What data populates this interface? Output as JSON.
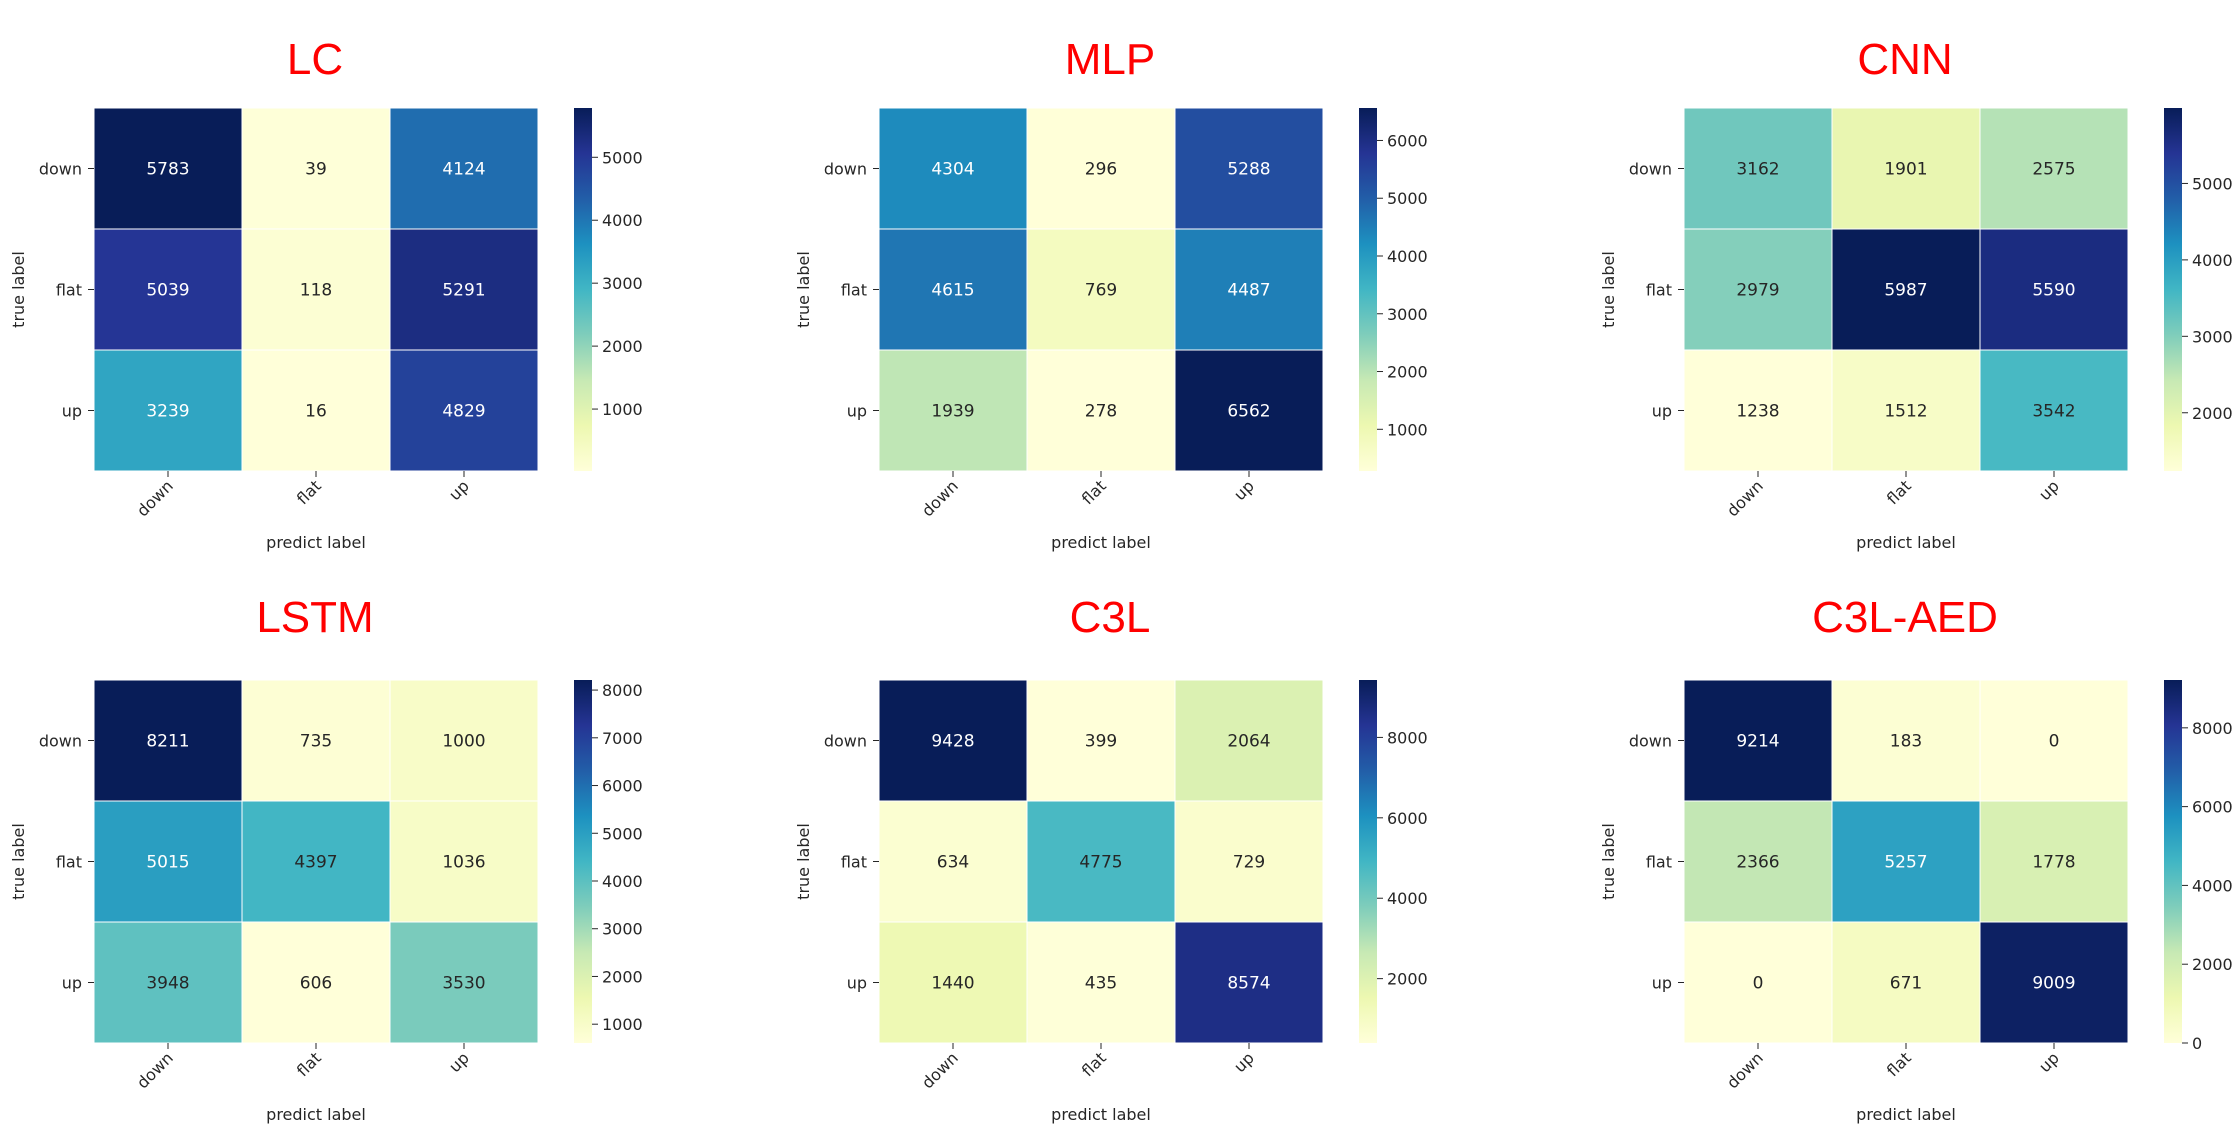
{
  "colors": {
    "title": "#ff0000",
    "axis_text": "#262626",
    "cell_border": "#ffffff",
    "colormap": "YlGnBu",
    "colormap_stops": [
      "#ffffd9",
      "#edf8b1",
      "#c7e9b4",
      "#7fcdbb",
      "#41b6c4",
      "#1d91c0",
      "#225ea8",
      "#253494",
      "#081d58"
    ]
  },
  "chart_data": [
    {
      "type": "heatmap",
      "title": "LC",
      "xlabel": "predict label",
      "ylabel": "true label",
      "x_categories": [
        "down",
        "flat",
        "up"
      ],
      "y_categories": [
        "down",
        "flat",
        "up"
      ],
      "values": [
        [
          5783,
          39,
          4124
        ],
        [
          5039,
          118,
          5291
        ],
        [
          3239,
          16,
          4829
        ]
      ],
      "color_range": [
        16,
        5783
      ],
      "colorbar_ticks": [
        1000,
        2000,
        3000,
        4000,
        5000
      ]
    },
    {
      "type": "heatmap",
      "title": "MLP",
      "xlabel": "predict label",
      "ylabel": "true label",
      "x_categories": [
        "down",
        "flat",
        "up"
      ],
      "y_categories": [
        "down",
        "flat",
        "up"
      ],
      "values": [
        [
          4304,
          296,
          5288
        ],
        [
          4615,
          769,
          4487
        ],
        [
          1939,
          278,
          6562
        ]
      ],
      "color_range": [
        278,
        6562
      ],
      "colorbar_ticks": [
        1000,
        2000,
        3000,
        4000,
        5000,
        6000
      ]
    },
    {
      "type": "heatmap",
      "title": "CNN",
      "xlabel": "predict label",
      "ylabel": "true label",
      "x_categories": [
        "down",
        "flat",
        "up"
      ],
      "y_categories": [
        "down",
        "flat",
        "up"
      ],
      "values": [
        [
          3162,
          1901,
          2575
        ],
        [
          2979,
          5987,
          5590
        ],
        [
          1238,
          1512,
          3542
        ]
      ],
      "color_range": [
        1238,
        5987
      ],
      "colorbar_ticks": [
        2000,
        3000,
        4000,
        5000
      ]
    },
    {
      "type": "heatmap",
      "title": "LSTM",
      "xlabel": "predict label",
      "ylabel": "true label",
      "x_categories": [
        "down",
        "flat",
        "up"
      ],
      "y_categories": [
        "down",
        "flat",
        "up"
      ],
      "values": [
        [
          8211,
          735,
          1000
        ],
        [
          5015,
          4397,
          1036
        ],
        [
          3948,
          606,
          3530
        ]
      ],
      "color_range": [
        606,
        8211
      ],
      "colorbar_ticks": [
        1000,
        2000,
        3000,
        4000,
        5000,
        6000,
        7000,
        8000
      ]
    },
    {
      "type": "heatmap",
      "title": "C3L",
      "xlabel": "predict label",
      "ylabel": "true label",
      "x_categories": [
        "down",
        "flat",
        "up"
      ],
      "y_categories": [
        "down",
        "flat",
        "up"
      ],
      "values": [
        [
          9428,
          399,
          2064
        ],
        [
          634,
          4775,
          729
        ],
        [
          1440,
          435,
          8574
        ]
      ],
      "color_range": [
        399,
        9428
      ],
      "colorbar_ticks": [
        2000,
        4000,
        6000,
        8000
      ]
    },
    {
      "type": "heatmap",
      "title": "C3L-AED",
      "xlabel": "predict label",
      "ylabel": "true label",
      "x_categories": [
        "down",
        "flat",
        "up"
      ],
      "y_categories": [
        "down",
        "flat",
        "up"
      ],
      "values": [
        [
          9214,
          183,
          0
        ],
        [
          2366,
          5257,
          1778
        ],
        [
          0,
          671,
          9009
        ]
      ],
      "color_range": [
        0,
        9214
      ],
      "colorbar_ticks": [
        0,
        2000,
        4000,
        6000,
        8000
      ]
    }
  ]
}
